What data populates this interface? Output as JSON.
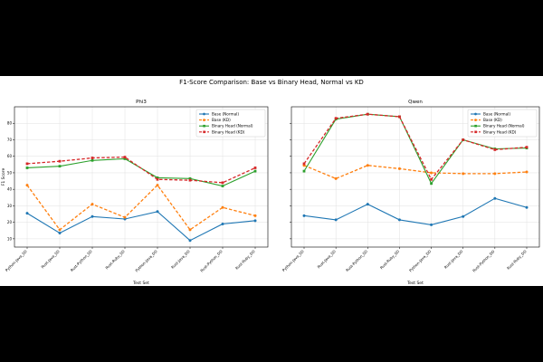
{
  "figure": {
    "title": "F1-Score Comparison: Base vs Binary Head, Normal vs KD"
  },
  "chart_data": [
    {
      "type": "line",
      "title": "Phi3",
      "xlabel": "Test Set",
      "ylabel": "F1 Score",
      "ylim": [
        5,
        90
      ],
      "yticks": [
        10,
        20,
        30,
        40,
        50,
        60,
        70,
        80
      ],
      "grid": true,
      "legend_position": "top-right",
      "categories": [
        "Python-Java_SD",
        "Rust-Java_SD",
        "Rust-Python_SD",
        "Rust-Ruby_SD",
        "Python-Java_DD",
        "Rust-Java_DD",
        "Rust-Python_DD",
        "Rust-Ruby_DD"
      ],
      "series": [
        {
          "name": "Base (Normal)",
          "color": "#1f77b4",
          "dash": "solid",
          "marker": "circle",
          "values": [
            25.5,
            13.5,
            23.5,
            22,
            26.5,
            9,
            19,
            21
          ]
        },
        {
          "name": "Base (KD)",
          "color": "#ff7f0e",
          "dash": "dashed",
          "marker": "circle",
          "values": [
            42.5,
            15.5,
            31,
            23,
            42.5,
            15.5,
            29,
            24
          ]
        },
        {
          "name": "Binary Head (Normal)",
          "color": "#2ca02c",
          "dash": "solid",
          "marker": "square",
          "values": [
            53,
            54,
            57.5,
            58.5,
            47,
            46.5,
            42,
            51
          ]
        },
        {
          "name": "Binary Head (KD)",
          "color": "#d62728",
          "dash": "dashed",
          "marker": "square",
          "values": [
            55.5,
            57,
            59,
            59.5,
            46,
            45.5,
            44,
            53
          ]
        }
      ]
    },
    {
      "type": "line",
      "title": "Qwen",
      "xlabel": "Test Set",
      "ylabel": "",
      "ylim": [
        5,
        90
      ],
      "grid": true,
      "legend_position": "top-right",
      "categories": [
        "Python-Java_SD",
        "Rust-Java_SD",
        "Rust-Python_SD",
        "Rust-Ruby_SD",
        "Python-Java_DD",
        "Rust-Java_DD",
        "Rust-Python_DD",
        "Rust-Ruby_DD"
      ],
      "series": [
        {
          "name": "Base (Normal)",
          "color": "#1f77b4",
          "dash": "solid",
          "marker": "circle",
          "values": [
            24,
            21.5,
            31,
            21.5,
            18.5,
            23.5,
            34.5,
            29
          ]
        },
        {
          "name": "Base (KD)",
          "color": "#ff7f0e",
          "dash": "dashed",
          "marker": "circle",
          "values": [
            54.5,
            46.5,
            54.5,
            52.5,
            50,
            49.5,
            49.5,
            50.5
          ]
        },
        {
          "name": "Binary Head (Normal)",
          "color": "#2ca02c",
          "dash": "solid",
          "marker": "square",
          "values": [
            51,
            82.5,
            85.5,
            84,
            43.5,
            70,
            64.5,
            65
          ]
        },
        {
          "name": "Binary Head (KD)",
          "color": "#d62728",
          "dash": "dashed",
          "marker": "square",
          "values": [
            55.5,
            83,
            85.5,
            84,
            46,
            70,
            64,
            65.5
          ]
        }
      ]
    }
  ]
}
